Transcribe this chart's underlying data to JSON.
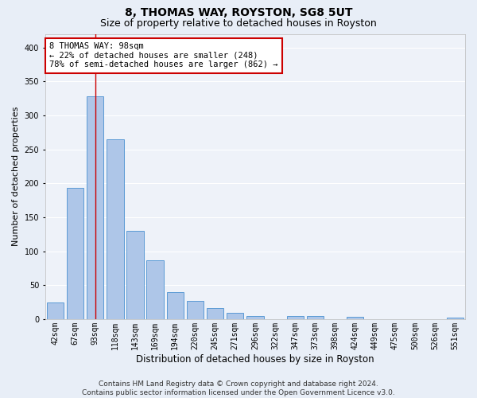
{
  "title": "8, THOMAS WAY, ROYSTON, SG8 5UT",
  "subtitle": "Size of property relative to detached houses in Royston",
  "xlabel": "Distribution of detached houses by size in Royston",
  "ylabel": "Number of detached properties",
  "categories": [
    "42sqm",
    "67sqm",
    "93sqm",
    "118sqm",
    "143sqm",
    "169sqm",
    "194sqm",
    "220sqm",
    "245sqm",
    "271sqm",
    "296sqm",
    "322sqm",
    "347sqm",
    "373sqm",
    "398sqm",
    "424sqm",
    "449sqm",
    "475sqm",
    "500sqm",
    "526sqm",
    "551sqm"
  ],
  "values": [
    25,
    193,
    328,
    265,
    130,
    87,
    40,
    27,
    16,
    9,
    5,
    0,
    5,
    5,
    0,
    3,
    0,
    0,
    0,
    0,
    2
  ],
  "bar_color": "#aec6e8",
  "bar_edge_color": "#5b9bd5",
  "vline_color": "#cc0000",
  "vline_bar_index": 2,
  "annotation_text": "8 THOMAS WAY: 98sqm\n← 22% of detached houses are smaller (248)\n78% of semi-detached houses are larger (862) →",
  "annotation_box_color": "#ffffff",
  "annotation_box_edge_color": "#cc0000",
  "ylim": [
    0,
    420
  ],
  "yticks": [
    0,
    50,
    100,
    150,
    200,
    250,
    300,
    350,
    400
  ],
  "bg_color": "#e8eef7",
  "plot_bg_color": "#eef2f9",
  "grid_color": "#ffffff",
  "footer_line1": "Contains HM Land Registry data © Crown copyright and database right 2024.",
  "footer_line2": "Contains public sector information licensed under the Open Government Licence v3.0.",
  "title_fontsize": 10,
  "subtitle_fontsize": 9,
  "xlabel_fontsize": 8.5,
  "ylabel_fontsize": 8,
  "tick_fontsize": 7,
  "annotation_fontsize": 7.5,
  "footer_fontsize": 6.5
}
